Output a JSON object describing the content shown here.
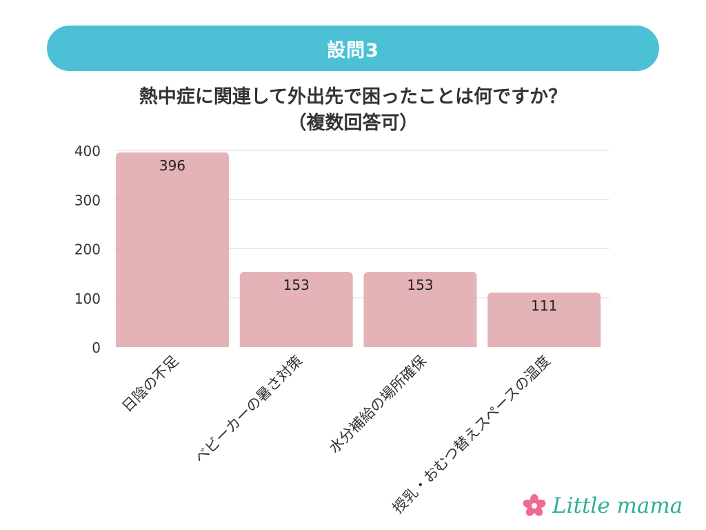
{
  "header": {
    "label": "設問3"
  },
  "question": {
    "line1": "熱中症に関連して外出先で困ったことは何ですか？",
    "line2": "（複数回答可）"
  },
  "chart_data": {
    "type": "bar",
    "categories": [
      "日陰の不足",
      "ベビーカーの暑さ対策",
      "水分補給の場所確保",
      "授乳・おむつ替えスペースの温度"
    ],
    "values": [
      396,
      153,
      153,
      111
    ],
    "yticks": [
      0,
      100,
      200,
      300,
      400
    ],
    "ylim": [
      0,
      400
    ],
    "title": "熱中症に関連して外出先で困ったことは何ですか？（複数回答可）",
    "xlabel": "",
    "ylabel": "",
    "grid": true,
    "legend": "none"
  },
  "colors": {
    "bar": "#e3b3b8",
    "banner": "#4cc1d6",
    "logo_text": "#2fae98",
    "logo_flower": "#ef6b8f"
  },
  "logo": {
    "text": "Little mama",
    "icon": "flower-icon"
  }
}
